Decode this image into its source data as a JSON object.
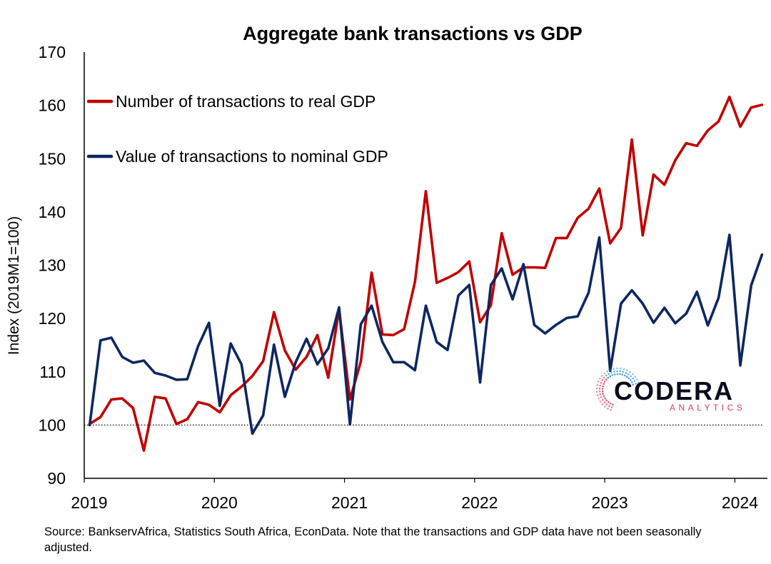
{
  "chart_data": {
    "type": "line",
    "title": "Aggregate bank transactions vs GDP",
    "ylabel": "Index (2019M1=100)",
    "xlabel": "",
    "ylim": [
      90,
      170
    ],
    "yticks": [
      90,
      100,
      110,
      120,
      130,
      140,
      150,
      160,
      170
    ],
    "xlim": [
      0,
      63
    ],
    "xticks": [
      {
        "pos": 0,
        "label": "2019"
      },
      {
        "pos": 12,
        "label": "2020"
      },
      {
        "pos": 24,
        "label": "2021"
      },
      {
        "pos": 36,
        "label": "2022"
      },
      {
        "pos": 48,
        "label": "2023"
      },
      {
        "pos": 60,
        "label": "2024"
      }
    ],
    "reference_line": {
      "y": 100,
      "style": "dotted"
    },
    "legend_position": "top-left",
    "grid": false,
    "x": [
      "2019M1",
      "2019M2",
      "2019M3",
      "2019M4",
      "2019M5",
      "2019M6",
      "2019M7",
      "2019M8",
      "2019M9",
      "2019M10",
      "2019M11",
      "2019M12",
      "2020M1",
      "2020M2",
      "2020M3",
      "2020M4",
      "2020M5",
      "2020M6",
      "2020M7",
      "2020M8",
      "2020M9",
      "2020M10",
      "2020M11",
      "2020M12",
      "2021M1",
      "2021M2",
      "2021M3",
      "2021M4",
      "2021M5",
      "2021M6",
      "2021M7",
      "2021M8",
      "2021M9",
      "2021M10",
      "2021M11",
      "2021M12",
      "2022M1",
      "2022M2",
      "2022M3",
      "2022M4",
      "2022M5",
      "2022M6",
      "2022M7",
      "2022M8",
      "2022M9",
      "2022M10",
      "2022M11",
      "2022M12",
      "2023M1",
      "2023M2",
      "2023M3",
      "2023M4",
      "2023M5",
      "2023M6",
      "2023M7",
      "2023M8",
      "2023M9",
      "2023M10",
      "2023M11",
      "2023M12",
      "2024M1",
      "2024M2",
      "2024M3"
    ],
    "series": [
      {
        "name": "Number of transactions to real GDP",
        "color": "#c00000",
        "values": [
          100.2,
          101.5,
          104.8,
          105.0,
          103.2,
          95.2,
          105.3,
          105.0,
          100.2,
          101.1,
          104.3,
          103.8,
          102.4,
          105.6,
          107.2,
          109.2,
          112.0,
          121.2,
          114.0,
          110.4,
          112.8,
          116.9,
          108.9,
          121.7,
          104.8,
          111.9,
          128.6,
          117.0,
          116.9,
          118.0,
          126.9,
          143.9,
          126.7,
          127.6,
          128.7,
          130.7,
          119.3,
          122.5,
          136.0,
          128.2,
          129.6,
          129.6,
          129.5,
          135.1,
          135.1,
          138.9,
          140.6,
          144.4,
          134.1,
          137.0,
          153.6,
          135.6,
          147.0,
          145.1,
          149.7,
          152.9,
          152.4,
          155.3,
          157.0,
          161.6,
          156.0,
          159.6,
          160.1
        ]
      },
      {
        "name": "Value of transactions to nominal GDP",
        "color": "#0d2760",
        "values": [
          100.0,
          115.9,
          116.4,
          112.8,
          111.7,
          112.1,
          109.8,
          109.3,
          108.5,
          108.6,
          114.8,
          119.2,
          103.6,
          115.3,
          111.4,
          98.4,
          101.8,
          115.1,
          105.3,
          111.8,
          116.2,
          111.4,
          114.4,
          122.1,
          100.1,
          118.9,
          122.4,
          115.6,
          111.8,
          111.8,
          110.3,
          122.4,
          115.6,
          114.1,
          124.3,
          126.3,
          108.0,
          126.3,
          129.4,
          123.6,
          130.2,
          118.8,
          117.2,
          118.8,
          120.1,
          120.4,
          124.8,
          135.2,
          110.2,
          122.8,
          125.3,
          122.8,
          119.2,
          122.0,
          119.1,
          120.9,
          125.0,
          118.7,
          123.9,
          135.7,
          111.2,
          126.2,
          132.0
        ]
      }
    ],
    "source_note": "Source: BankservAfrica, Statistics South Africa, EconData. Note that the transactions and GDP data have not been seasonally adjusted."
  },
  "logo": {
    "name": "CODERA",
    "tagline": "ANALYTICS",
    "colors": {
      "wordmark": "#0b0b1e",
      "tagline": "#d14060",
      "ring_start": "#d14060",
      "ring_end": "#2a8fd8"
    }
  }
}
